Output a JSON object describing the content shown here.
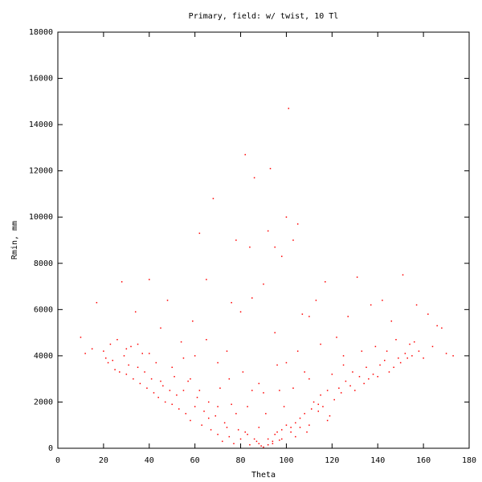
{
  "chart_data": {
    "type": "scatter",
    "title": "Primary, field: w/ twist, 10 Tl",
    "x_label": "Theta",
    "y_label": "Rmin, mm",
    "color": "#ff0000",
    "x": [
      10,
      12,
      15,
      17,
      20,
      21,
      22,
      23,
      24,
      25,
      26,
      27,
      28,
      29,
      30,
      31,
      32,
      33,
      34,
      35,
      36,
      37,
      38,
      39,
      40,
      41,
      42,
      43,
      44,
      45,
      46,
      47,
      48,
      49,
      50,
      51,
      52,
      53,
      54,
      55,
      56,
      57,
      58,
      59,
      60,
      61,
      62,
      63,
      64,
      65,
      66,
      67,
      68,
      69,
      70,
      71,
      72,
      73,
      74,
      75,
      76,
      77,
      78,
      79,
      80,
      81,
      82,
      83,
      84,
      85,
      86,
      87,
      88,
      89,
      90,
      91,
      92,
      93,
      94,
      95,
      96,
      97,
      98,
      99,
      100,
      101,
      102,
      103,
      104,
      105,
      106,
      107,
      108,
      109,
      110,
      111,
      112,
      113,
      114,
      115,
      116,
      117,
      118,
      119,
      120,
      121,
      122,
      123,
      124,
      125,
      126,
      127,
      128,
      129,
      130,
      131,
      132,
      133,
      134,
      135,
      136,
      137,
      138,
      139,
      140,
      141,
      142,
      143,
      144,
      145,
      146,
      147,
      148,
      149,
      150,
      151,
      152,
      153,
      154,
      155,
      156,
      157,
      158,
      160,
      162,
      164,
      166,
      168,
      170,
      173,
      58,
      62,
      66,
      70,
      74,
      78,
      82,
      86,
      88,
      92,
      94,
      96,
      98,
      100,
      102,
      104,
      106,
      110,
      114,
      118,
      80,
      85,
      90,
      95,
      98,
      103,
      92,
      76,
      84,
      110,
      50,
      40,
      30,
      70,
      75,
      60,
      105,
      115,
      125,
      95,
      88,
      100,
      90,
      97,
      83,
      108,
      65,
      55,
      45,
      35
    ],
    "y": [
      4800,
      4100,
      4300,
      6300,
      4200,
      3900,
      3700,
      4500,
      3800,
      3400,
      4700,
      3300,
      7200,
      4000,
      3200,
      3600,
      4400,
      3000,
      5900,
      3500,
      2800,
      4100,
      3300,
      2600,
      7300,
      3000,
      2400,
      3700,
      2200,
      5200,
      2700,
      2000,
      6400,
      2500,
      1900,
      3100,
      2300,
      1700,
      4600,
      2500,
      1500,
      2900,
      1200,
      5500,
      1800,
      2200,
      9300,
      1000,
      1600,
      7300,
      1300,
      800,
      10800,
      1400,
      600,
      2600,
      300,
      1100,
      4200,
      500,
      1900,
      200,
      9000,
      800,
      400,
      3300,
      12700,
      600,
      150,
      2500,
      11700,
      300,
      900,
      100,
      50,
      1500,
      400,
      12100,
      200,
      600,
      3600,
      350,
      800,
      1800,
      10000,
      14700,
      900,
      2600,
      1100,
      9700,
      1300,
      5800,
      1500,
      700,
      3000,
      1700,
      2000,
      6400,
      1600,
      2300,
      1800,
      7200,
      2500,
      1400,
      3200,
      2100,
      4800,
      2600,
      2400,
      3600,
      2900,
      5700,
      2700,
      3300,
      2500,
      7400,
      3100,
      4200,
      2800,
      3500,
      3000,
      6200,
      3200,
      4400,
      3100,
      3600,
      6400,
      3800,
      4200,
      3300,
      5500,
      3500,
      4700,
      3900,
      3700,
      7500,
      4100,
      3900,
      4500,
      4000,
      4600,
      6200,
      4200,
      3900,
      5800,
      4400,
      5300,
      5200,
      4100,
      4000,
      3000,
      2500,
      2000,
      1800,
      900,
      1500,
      700,
      400,
      200,
      150,
      300,
      700,
      400,
      1000,
      700,
      500,
      900,
      1000,
      1900,
      1200,
      5900,
      6500,
      7100,
      8700,
      8300,
      9000,
      9400,
      6300,
      8700,
      5700,
      3500,
      4100,
      4300,
      3700,
      3000,
      4000,
      4200,
      4500,
      4000,
      5000,
      2800,
      3700,
      2400,
      2500,
      1800,
      3300,
      4700,
      3900,
      2900,
      4500
    ],
    "xlim": [
      0,
      180
    ],
    "xticks": [
      0,
      20,
      40,
      60,
      80,
      100,
      120,
      140,
      160,
      180
    ],
    "ylim": [
      0,
      18000
    ],
    "yticks": [
      0,
      2000,
      4000,
      6000,
      8000,
      10000,
      12000,
      14000,
      16000,
      18000
    ]
  }
}
